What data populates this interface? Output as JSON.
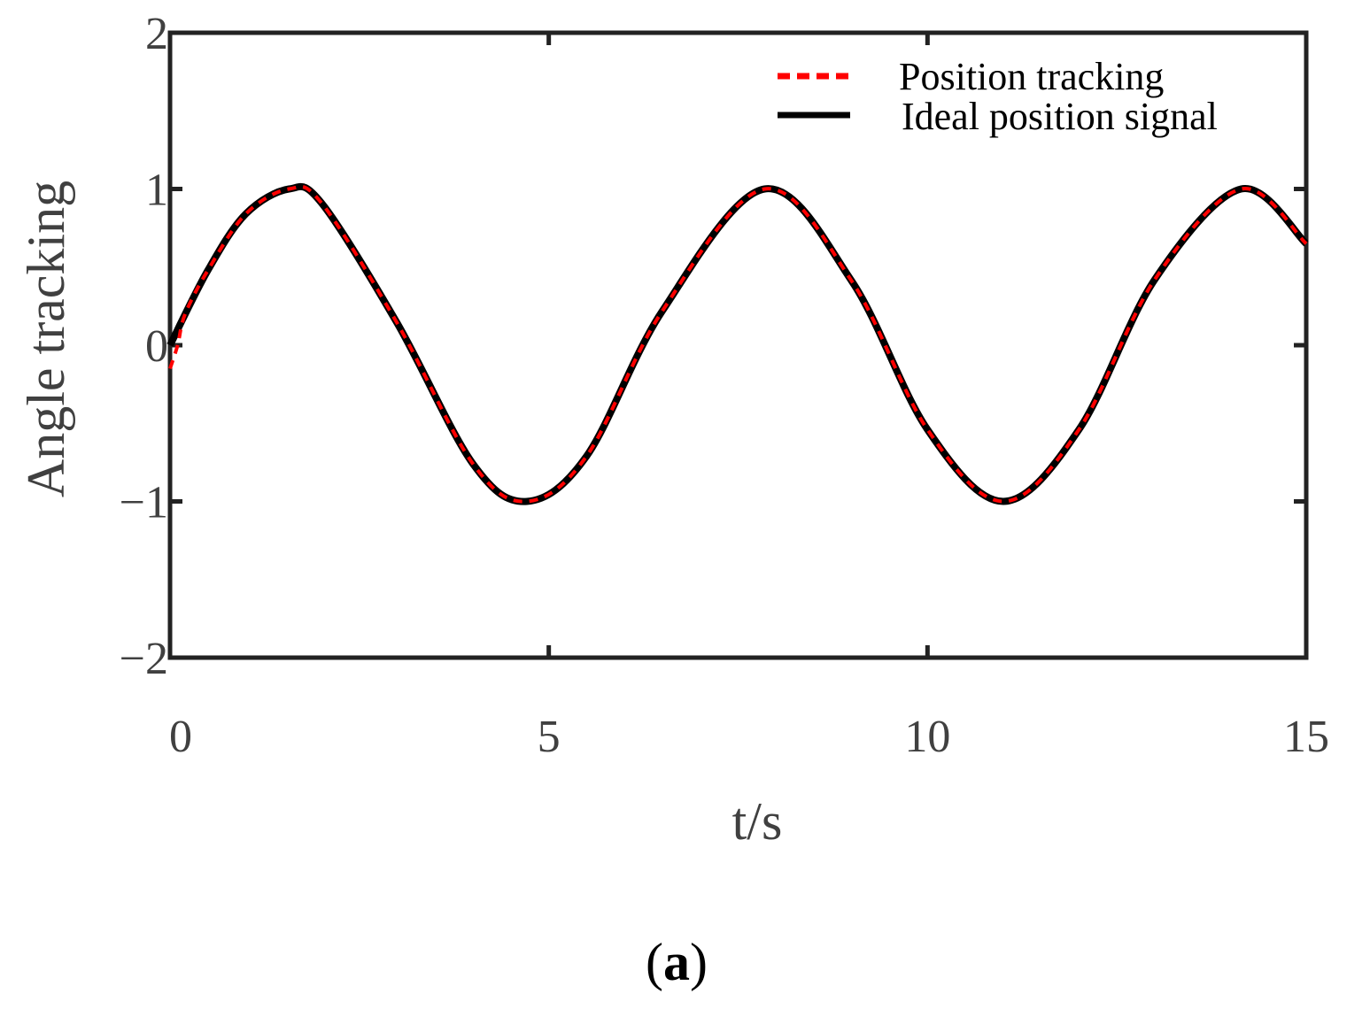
{
  "chart_data": {
    "type": "line",
    "title": "",
    "xlabel": "t/s",
    "ylabel": "Angle tracking",
    "xlim": [
      0,
      15
    ],
    "ylim": [
      -2,
      2
    ],
    "xticks": [
      0,
      5,
      10,
      15
    ],
    "xtick_labels": [
      "0",
      "5",
      "10",
      "15"
    ],
    "yticks": [
      -2,
      -1,
      0,
      1,
      2
    ],
    "ytick_labels": [
      "−2",
      "−1",
      "0",
      "1",
      "2"
    ],
    "grid": false,
    "legend_position": "top-right",
    "series": [
      {
        "name": "Position tracking",
        "style": "dashed",
        "color": "#ff0000",
        "x": [
          0,
          0.1,
          0.2,
          0.5,
          1.0,
          1.57,
          2.0,
          3.0,
          4.0,
          4.71,
          5.5,
          6.5,
          7.85,
          9.0,
          10.0,
          11.0,
          12.0,
          13.0,
          14.14,
          15.0
        ],
        "y": [
          -0.15,
          0.0,
          0.2,
          0.48,
          0.84,
          1.0,
          0.91,
          0.14,
          -0.76,
          -1.0,
          -0.71,
          0.22,
          1.0,
          0.41,
          -0.54,
          -1.0,
          -0.54,
          0.42,
          1.0,
          0.65
        ]
      },
      {
        "name": "Ideal position signal",
        "style": "solid",
        "color": "#000000",
        "x": [
          0,
          0.5,
          1.0,
          1.57,
          2.0,
          3.0,
          4.0,
          4.71,
          5.5,
          6.5,
          7.85,
          9.0,
          10.0,
          11.0,
          12.0,
          13.0,
          14.14,
          15.0
        ],
        "y": [
          0.0,
          0.48,
          0.84,
          1.0,
          0.91,
          0.14,
          -0.76,
          -1.0,
          -0.71,
          0.22,
          1.0,
          0.41,
          -0.54,
          -1.0,
          -0.54,
          0.42,
          1.0,
          0.65
        ]
      }
    ]
  },
  "caption": {
    "open": "(",
    "letter": "a",
    "close": ")"
  }
}
